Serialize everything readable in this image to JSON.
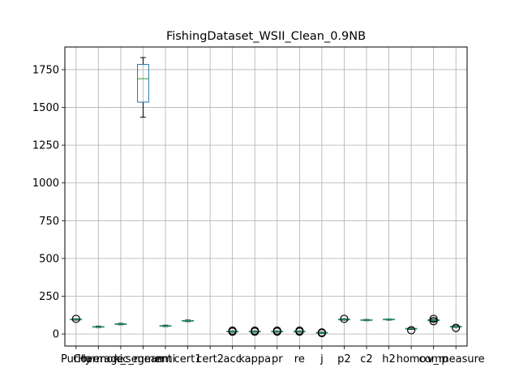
{
  "chart_data": {
    "type": "box",
    "title": "FishingDataset_WSII_Clean_0.9NB",
    "xlabel": "",
    "ylabel": "",
    "ylim": [
      -80,
      1900
    ],
    "yticks": [
      0,
      250,
      500,
      750,
      1000,
      1250,
      1500,
      1750
    ],
    "grid": true,
    "box_color": "#1f77b4",
    "median_color": "#2ca02c",
    "categories": [
      "Purity",
      "Coverage",
      "Harmonic_mean",
      "k_segment",
      "nmi",
      "cert1",
      "cert2",
      "acc",
      "kappa",
      "pr",
      "re",
      "j",
      "p2",
      "c2",
      "h2",
      "homo",
      "comp",
      "v_measure"
    ],
    "tick_labels": [
      "Purity",
      "Coverage",
      "Harmonic_mean",
      "k_segment",
      "nmi",
      "cert1",
      "cert2",
      "acc",
      "kappa",
      "pr",
      "re",
      "j",
      "p2",
      "c2",
      "h2",
      "homo",
      "comp",
      "v_measure"
    ],
    "boxes": [
      {
        "category": "Purity",
        "whislo": 92,
        "q1": 94,
        "med": 96,
        "q3": 98,
        "whishi": 100,
        "fliers": [
          100
        ]
      },
      {
        "category": "Coverage",
        "whislo": 43,
        "q1": 45,
        "med": 47,
        "q3": 49,
        "whishi": 52,
        "fliers": []
      },
      {
        "category": "Harmonic_mean",
        "whislo": 61,
        "q1": 63,
        "med": 65,
        "q3": 67,
        "whishi": 70,
        "fliers": []
      },
      {
        "category": "k_segment",
        "whislo": 1435,
        "q1": 1535,
        "med": 1690,
        "q3": 1785,
        "whishi": 1830,
        "fliers": []
      },
      {
        "category": "nmi",
        "whislo": 49,
        "q1": 51,
        "med": 53,
        "q3": 55,
        "whishi": 58,
        "fliers": []
      },
      {
        "category": "cert1",
        "whislo": 82,
        "q1": 85,
        "med": 87,
        "q3": 89,
        "whishi": 92,
        "fliers": []
      },
      {
        "category": "acc",
        "whislo": 12,
        "q1": 14,
        "med": 16,
        "q3": 18,
        "whishi": 20,
        "fliers": [
          22,
          15
        ]
      },
      {
        "category": "kappa",
        "whislo": 12,
        "q1": 14,
        "med": 16,
        "q3": 18,
        "whishi": 20,
        "fliers": [
          22,
          15
        ]
      },
      {
        "category": "pr",
        "whislo": 12,
        "q1": 14,
        "med": 16,
        "q3": 18,
        "whishi": 20,
        "fliers": [
          22,
          15
        ]
      },
      {
        "category": "re",
        "whislo": 12,
        "q1": 14,
        "med": 16,
        "q3": 18,
        "whishi": 20,
        "fliers": [
          22,
          15
        ]
      },
      {
        "category": "j",
        "whislo": 4,
        "q1": 6,
        "med": 8,
        "q3": 10,
        "whishi": 12,
        "fliers": [
          10,
          6
        ]
      },
      {
        "category": "p2",
        "whislo": 92,
        "q1": 94,
        "med": 96,
        "q3": 98,
        "whishi": 100,
        "fliers": [
          100
        ]
      },
      {
        "category": "c2",
        "whislo": 88,
        "q1": 90,
        "med": 92,
        "q3": 94,
        "whishi": 96,
        "fliers": []
      },
      {
        "category": "h2",
        "whislo": 92,
        "q1": 94,
        "med": 96,
        "q3": 98,
        "whishi": 99,
        "fliers": []
      },
      {
        "category": "homo",
        "whislo": 30,
        "q1": 33,
        "med": 35,
        "q3": 37,
        "whishi": 40,
        "fliers": [
          25
        ]
      },
      {
        "category": "comp",
        "whislo": 84,
        "q1": 88,
        "med": 91,
        "q3": 94,
        "whishi": 97,
        "fliers": [
          100,
          85
        ]
      },
      {
        "category": "v_measure",
        "whislo": 44,
        "q1": 47,
        "med": 49,
        "q3": 51,
        "whishi": 54,
        "fliers": [
          40
        ]
      }
    ]
  }
}
